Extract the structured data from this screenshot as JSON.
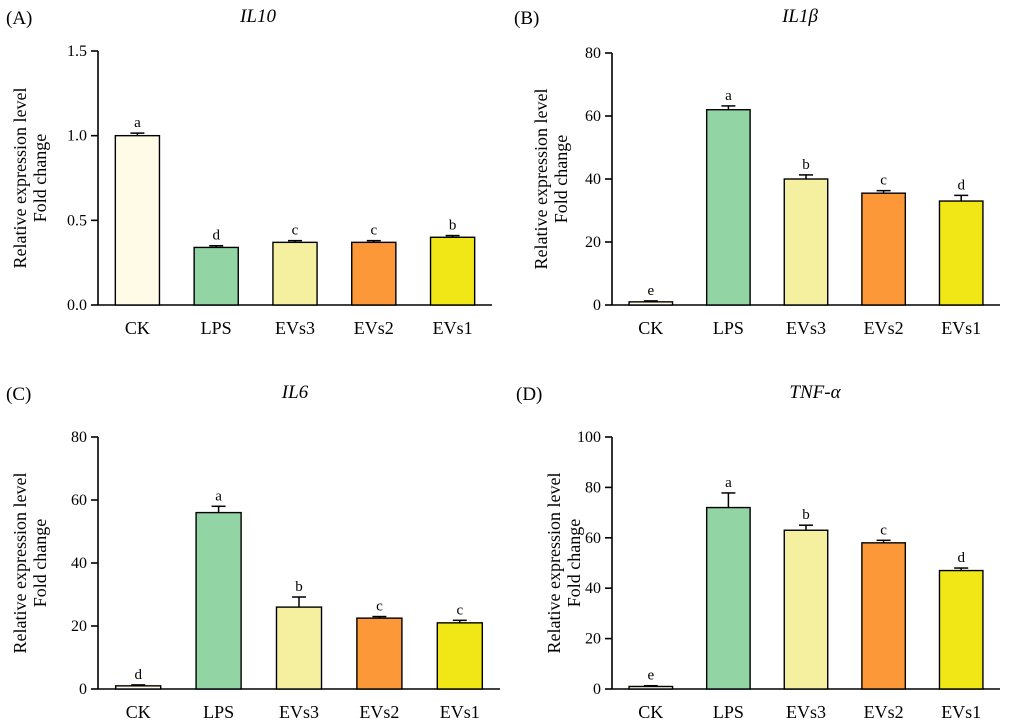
{
  "figure": {
    "panels": [
      {
        "letter": "(A)",
        "title": "IL10"
      },
      {
        "letter": "(B)",
        "title": "IL1β"
      },
      {
        "letter": "(C)",
        "title": "IL6"
      },
      {
        "letter": "(D)",
        "title": "TNF-α"
      }
    ]
  },
  "colors": {
    "CK": "#fffbe6",
    "LPS": "#93d4a5",
    "EVs3": "#f5f0a0",
    "EVs2": "#fd9838",
    "EVs1": "#f1e717",
    "axis": "#000000"
  },
  "chart_data": [
    {
      "type": "bar",
      "title": "IL10",
      "panel": "(A)",
      "categories": [
        "CK",
        "LPS",
        "EVs3",
        "EVs2",
        "EVs1"
      ],
      "values": [
        1.0,
        0.34,
        0.37,
        0.37,
        0.4
      ],
      "errors": [
        0.015,
        0.01,
        0.01,
        0.01,
        0.01
      ],
      "significance": [
        "a",
        "d",
        "c",
        "c",
        "b"
      ],
      "ylabel": [
        "Relative expression level",
        "Fold change"
      ],
      "ylim": [
        0,
        1.5
      ],
      "yticks": [
        0.0,
        0.5,
        1.0,
        1.5
      ],
      "ytick_labels": [
        "0.0",
        "0.5",
        "1.0",
        "1.5"
      ],
      "grid": false
    },
    {
      "type": "bar",
      "title": "IL1β",
      "panel": "(B)",
      "categories": [
        "CK",
        "LPS",
        "EVs3",
        "EVs2",
        "EVs1"
      ],
      "values": [
        1,
        62,
        40,
        35.5,
        33
      ],
      "errors": [
        0.3,
        1.2,
        1.3,
        0.8,
        1.8
      ],
      "significance": [
        "e",
        "a",
        "b",
        "c",
        "d"
      ],
      "ylabel": [
        "Relative expression level",
        "Fold change"
      ],
      "ylim": [
        0,
        80
      ],
      "yticks": [
        0,
        20,
        40,
        60,
        80
      ],
      "ytick_labels": [
        "0",
        "20",
        "40",
        "60",
        "80"
      ],
      "grid": false
    },
    {
      "type": "bar",
      "title": "IL6",
      "panel": "(C)",
      "categories": [
        "CK",
        "LPS",
        "EVs3",
        "EVs2",
        "EVs1"
      ],
      "values": [
        1,
        56,
        26,
        22.5,
        21
      ],
      "errors": [
        0.3,
        2.0,
        3.2,
        0.5,
        0.8
      ],
      "significance": [
        "d",
        "a",
        "b",
        "c",
        "c"
      ],
      "ylabel": [
        "Relative expression level",
        "Fold change"
      ],
      "ylim": [
        0,
        80
      ],
      "yticks": [
        0,
        20,
        40,
        60,
        80
      ],
      "ytick_labels": [
        "0",
        "20",
        "40",
        "60",
        "80"
      ],
      "grid": false
    },
    {
      "type": "bar",
      "title": "TNF-α",
      "panel": "(D)",
      "categories": [
        "CK",
        "LPS",
        "EVs3",
        "EVs2",
        "EVs1"
      ],
      "values": [
        1,
        72,
        63,
        58,
        47
      ],
      "errors": [
        0.3,
        5.8,
        2.0,
        1.0,
        1.0
      ],
      "significance": [
        "e",
        "a",
        "b",
        "c",
        "d"
      ],
      "ylabel": [
        "Relative expression level",
        "Fold change"
      ],
      "ylim": [
        0,
        100
      ],
      "yticks": [
        0,
        20,
        40,
        60,
        80,
        100
      ],
      "ytick_labels": [
        "0",
        "20",
        "40",
        "60",
        "80",
        "100"
      ],
      "grid": false
    }
  ]
}
